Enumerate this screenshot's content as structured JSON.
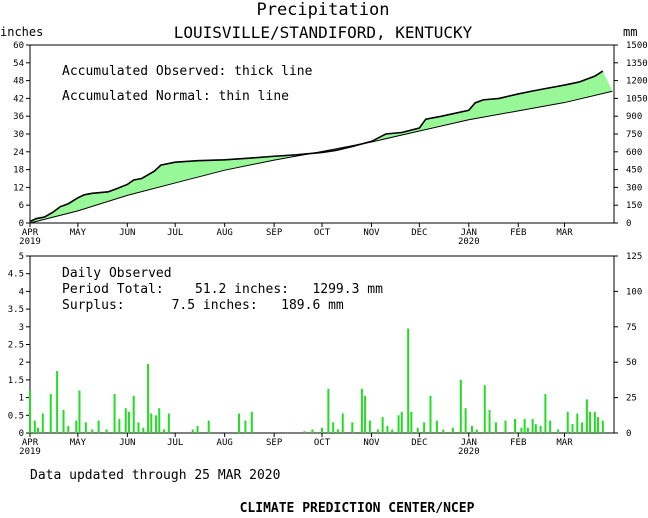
{
  "header": {
    "title": "Precipitation",
    "subtitle": "LOUISVILLE/STANDIFORD, KENTUCKY",
    "left_unit": "inches",
    "right_unit": "mm"
  },
  "notes": {
    "accum_observed": "Accumulated Observed: thick line",
    "accum_normal": "Accumulated Normal: thin line",
    "daily_title": "Daily Observed",
    "period_total": "Period Total:    51.2 inches:   1299.3 mm",
    "surplus": "Surplus:      7.5 inches:   189.6 mm"
  },
  "footer": {
    "updated": "Data updated through 25 MAR 2020",
    "credit": "CLIMATE PREDICTION CENTER/NCEP"
  },
  "colors": {
    "surplus_fill": "#98f898",
    "daily_bar": "#22dd22",
    "line": "#000000"
  },
  "chart_data": [
    {
      "type": "area",
      "title": "",
      "xlabel": "",
      "ylabel": "inches",
      "ylabel_right": "mm",
      "x_start": "2019-04-01",
      "x_end": "2020-03-31",
      "ylim": [
        0,
        60
      ],
      "y_ticks": [
        "0",
        "6",
        "12",
        "18",
        "24",
        "30",
        "36",
        "42",
        "48",
        "54",
        "60"
      ],
      "y2_ticks": [
        "0",
        "150",
        "300",
        "450",
        "600",
        "750",
        "900",
        "1050",
        "1200",
        "1350",
        "1500"
      ],
      "month_labels": [
        "APR",
        "MAY",
        "JUN",
        "JUL",
        "AUG",
        "SEP",
        "OCT",
        "NOV",
        "DEC",
        "JAN",
        "FEB",
        "MAR"
      ],
      "year_labels": [
        {
          "month_index": 0,
          "label": "2019"
        },
        {
          "month_index": 9,
          "label": "2020"
        }
      ],
      "legend": "top-left",
      "observed": {
        "x": [
          "2019-04-01",
          "2019-04-05",
          "2019-04-10",
          "2019-04-15",
          "2019-04-20",
          "2019-04-25",
          "2019-05-01",
          "2019-05-05",
          "2019-05-10",
          "2019-05-20",
          "2019-05-25",
          "2019-06-01",
          "2019-06-05",
          "2019-06-10",
          "2019-06-18",
          "2019-06-22",
          "2019-07-01",
          "2019-07-15",
          "2019-08-01",
          "2019-08-15",
          "2019-09-01",
          "2019-09-15",
          "2019-10-01",
          "2019-10-10",
          "2019-10-20",
          "2019-11-01",
          "2019-11-10",
          "2019-11-20",
          "2019-12-01",
          "2019-12-05",
          "2019-12-15",
          "2020-01-01",
          "2020-01-05",
          "2020-01-10",
          "2020-01-20",
          "2020-02-01",
          "2020-02-10",
          "2020-02-20",
          "2020-03-01",
          "2020-03-10",
          "2020-03-20",
          "2020-03-25"
        ],
        "y": [
          0.5,
          1.5,
          2.0,
          3.5,
          5.5,
          6.5,
          8.5,
          9.5,
          10.0,
          10.5,
          11.5,
          13.0,
          14.5,
          15.0,
          17.5,
          19.5,
          20.5,
          21.0,
          21.3,
          21.8,
          22.5,
          23.0,
          23.8,
          24.5,
          25.8,
          27.5,
          30.0,
          30.5,
          32.0,
          35.0,
          36.0,
          38.0,
          40.5,
          41.5,
          42.0,
          43.5,
          44.5,
          45.5,
          46.5,
          47.5,
          49.5,
          51.2
        ]
      },
      "normal": {
        "x": [
          "2019-04-01",
          "2019-05-01",
          "2019-06-01",
          "2019-07-01",
          "2019-08-01",
          "2019-09-01",
          "2019-10-01",
          "2019-11-01",
          "2019-12-01",
          "2020-01-01",
          "2020-02-01",
          "2020-03-01",
          "2020-03-31"
        ],
        "y": [
          0,
          4.1,
          9.3,
          13.5,
          17.8,
          21.2,
          24.1,
          27.3,
          31.0,
          34.8,
          37.8,
          40.6,
          44.4
        ]
      }
    },
    {
      "type": "bar",
      "title": "Daily Observed",
      "xlabel": "",
      "ylabel": "inches",
      "ylabel_right": "mm",
      "ylim": [
        0,
        5
      ],
      "y_ticks": [
        "0",
        "0.5",
        "1",
        "1.5",
        "2",
        "2.5",
        "3",
        "3.5",
        "4",
        "4.5",
        "5"
      ],
      "y2_ticks": [
        "0",
        "25",
        "50",
        "75",
        "100",
        "125"
      ],
      "bars": [
        {
          "date": "2019-04-01",
          "value": 1.2
        },
        {
          "date": "2019-04-04",
          "value": 0.35
        },
        {
          "date": "2019-04-06",
          "value": 0.15
        },
        {
          "date": "2019-04-09",
          "value": 0.55
        },
        {
          "date": "2019-04-14",
          "value": 1.1
        },
        {
          "date": "2019-04-18",
          "value": 1.75
        },
        {
          "date": "2019-04-22",
          "value": 0.65
        },
        {
          "date": "2019-04-25",
          "value": 0.2
        },
        {
          "date": "2019-04-30",
          "value": 0.35
        },
        {
          "date": "2019-05-02",
          "value": 1.2
        },
        {
          "date": "2019-05-06",
          "value": 0.3
        },
        {
          "date": "2019-05-10",
          "value": 0.1
        },
        {
          "date": "2019-05-14",
          "value": 0.35
        },
        {
          "date": "2019-05-19",
          "value": 0.1
        },
        {
          "date": "2019-05-24",
          "value": 1.1
        },
        {
          "date": "2019-05-27",
          "value": 0.4
        },
        {
          "date": "2019-05-31",
          "value": 0.7
        },
        {
          "date": "2019-06-02",
          "value": 0.6
        },
        {
          "date": "2019-06-05",
          "value": 1.05
        },
        {
          "date": "2019-06-08",
          "value": 0.3
        },
        {
          "date": "2019-06-11",
          "value": 0.15
        },
        {
          "date": "2019-06-14",
          "value": 1.95
        },
        {
          "date": "2019-06-16",
          "value": 0.55
        },
        {
          "date": "2019-06-19",
          "value": 0.5
        },
        {
          "date": "2019-06-21",
          "value": 0.7
        },
        {
          "date": "2019-06-24",
          "value": 0.1
        },
        {
          "date": "2019-06-27",
          "value": 0.55
        },
        {
          "date": "2019-07-12",
          "value": 0.1
        },
        {
          "date": "2019-07-15",
          "value": 0.2
        },
        {
          "date": "2019-07-22",
          "value": 0.35
        },
        {
          "date": "2019-08-10",
          "value": 0.55
        },
        {
          "date": "2019-08-14",
          "value": 0.35
        },
        {
          "date": "2019-08-18",
          "value": 0.6
        },
        {
          "date": "2019-09-20",
          "value": 0.05
        },
        {
          "date": "2019-09-25",
          "value": 0.1
        },
        {
          "date": "2019-10-01",
          "value": 0.15
        },
        {
          "date": "2019-10-05",
          "value": 1.25
        },
        {
          "date": "2019-10-08",
          "value": 0.3
        },
        {
          "date": "2019-10-11",
          "value": 0.1
        },
        {
          "date": "2019-10-14",
          "value": 0.55
        },
        {
          "date": "2019-10-20",
          "value": 0.3
        },
        {
          "date": "2019-10-26",
          "value": 1.25
        },
        {
          "date": "2019-10-28",
          "value": 1.05
        },
        {
          "date": "2019-10-31",
          "value": 0.35
        },
        {
          "date": "2019-11-05",
          "value": 0.1
        },
        {
          "date": "2019-11-08",
          "value": 0.45
        },
        {
          "date": "2019-11-11",
          "value": 0.2
        },
        {
          "date": "2019-11-14",
          "value": 0.1
        },
        {
          "date": "2019-11-18",
          "value": 0.5
        },
        {
          "date": "2019-11-20",
          "value": 0.6
        },
        {
          "date": "2019-11-24",
          "value": 2.95
        },
        {
          "date": "2019-11-26",
          "value": 0.6
        },
        {
          "date": "2019-11-30",
          "value": 0.15
        },
        {
          "date": "2019-12-04",
          "value": 0.3
        },
        {
          "date": "2019-12-08",
          "value": 1.05
        },
        {
          "date": "2019-12-12",
          "value": 0.35
        },
        {
          "date": "2019-12-16",
          "value": 0.1
        },
        {
          "date": "2019-12-22",
          "value": 0.15
        },
        {
          "date": "2019-12-27",
          "value": 1.5
        },
        {
          "date": "2019-12-30",
          "value": 0.7
        },
        {
          "date": "2020-01-03",
          "value": 0.2
        },
        {
          "date": "2020-01-06",
          "value": 0.1
        },
        {
          "date": "2020-01-11",
          "value": 1.35
        },
        {
          "date": "2020-01-14",
          "value": 0.65
        },
        {
          "date": "2020-01-18",
          "value": 0.3
        },
        {
          "date": "2020-01-24",
          "value": 0.35
        },
        {
          "date": "2020-01-30",
          "value": 0.4
        },
        {
          "date": "2020-02-03",
          "value": 0.15
        },
        {
          "date": "2020-02-05",
          "value": 0.4
        },
        {
          "date": "2020-02-07",
          "value": 0.15
        },
        {
          "date": "2020-02-10",
          "value": 0.4
        },
        {
          "date": "2020-02-12",
          "value": 0.25
        },
        {
          "date": "2020-02-15",
          "value": 0.2
        },
        {
          "date": "2020-02-18",
          "value": 1.1
        },
        {
          "date": "2020-02-21",
          "value": 0.35
        },
        {
          "date": "2020-02-26",
          "value": 0.1
        },
        {
          "date": "2020-03-03",
          "value": 0.6
        },
        {
          "date": "2020-03-06",
          "value": 0.25
        },
        {
          "date": "2020-03-09",
          "value": 0.55
        },
        {
          "date": "2020-03-12",
          "value": 0.3
        },
        {
          "date": "2020-03-15",
          "value": 0.95
        },
        {
          "date": "2020-03-17",
          "value": 0.6
        },
        {
          "date": "2020-03-20",
          "value": 0.6
        },
        {
          "date": "2020-03-22",
          "value": 0.45
        },
        {
          "date": "2020-03-25",
          "value": 0.35
        }
      ]
    }
  ]
}
